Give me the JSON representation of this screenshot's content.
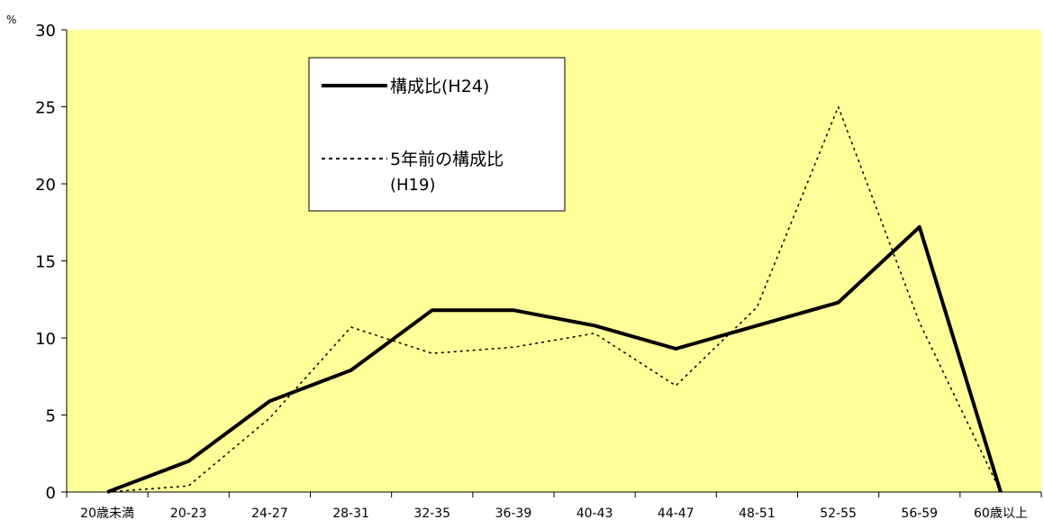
{
  "chart_data": {
    "type": "line",
    "ylabel": "%",
    "ylim": [
      0,
      30
    ],
    "yticks": [
      "0",
      "5",
      "10",
      "15",
      "20",
      "25",
      "30"
    ],
    "categories": [
      "20歳未満",
      "20-23",
      "24-27",
      "28-31",
      "32-35",
      "36-39",
      "40-43",
      "44-47",
      "48-51",
      "52-55",
      "56-59",
      "60歳以上"
    ],
    "grid": false,
    "legend_position": "top-left-inside",
    "background_color": "#FFFF99",
    "series": [
      {
        "name": "構成比(H24)",
        "style": "solid",
        "color": "#000000",
        "values": [
          0,
          2.0,
          5.9,
          7.9,
          11.8,
          11.8,
          10.8,
          9.3,
          10.8,
          12.3,
          17.2,
          0
        ]
      },
      {
        "name_line1": "5年前の構成比",
        "name_line2": "(H19)",
        "style": "dotted",
        "color": "#000000",
        "values": [
          0,
          0.4,
          4.8,
          10.7,
          9.0,
          9.4,
          10.3,
          6.9,
          12.0,
          25.0,
          11.0,
          0
        ]
      }
    ]
  }
}
